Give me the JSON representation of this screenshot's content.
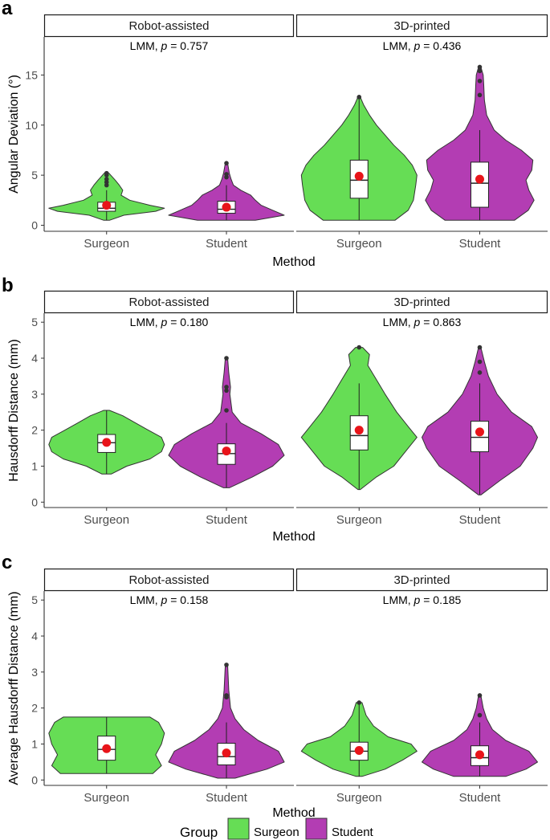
{
  "chart_data": [
    {
      "type": "violin",
      "panel_label": "a",
      "ylabel": "Angular Deviation (°)",
      "xlabel": "Method",
      "ylim": [
        -0.6,
        18.8
      ],
      "yticks": [
        0,
        5,
        10,
        15
      ],
      "categories": [
        "Surgeon",
        "Student"
      ],
      "facets": [
        {
          "strip": "Robot-assisted",
          "stat_prefix": "LMM, ",
          "stat_p": "p",
          "stat_value": " = 0.757",
          "violins": [
            {
              "group": "Surgeon",
              "ymin": 0.5,
              "ymax": 5.2,
              "q1": 1.4,
              "median": 1.7,
              "q3": 2.3,
              "mean": 2.0,
              "whisker_low": 0.5,
              "whisker_high": 3.5,
              "outliers": [
                4.0,
                4.3,
                4.6,
                5.0,
                5.2
              ],
              "profile": [
                [
                  0.5,
                  0.05
                ],
                [
                  1.0,
                  0.3
                ],
                [
                  1.4,
                  0.85
                ],
                [
                  1.7,
                  1.0
                ],
                [
                  2.0,
                  0.75
                ],
                [
                  2.5,
                  0.4
                ],
                [
                  3.0,
                  0.25
                ],
                [
                  3.5,
                  0.28
                ],
                [
                  4.0,
                  0.22
                ],
                [
                  4.5,
                  0.15
                ],
                [
                  5.2,
                  0.04
                ]
              ]
            },
            {
              "group": "Student",
              "ymin": 0.5,
              "ymax": 6.2,
              "q1": 1.2,
              "median": 1.6,
              "q3": 2.4,
              "mean": 1.8,
              "whisker_low": 0.5,
              "whisker_high": 4.0,
              "outliers": [
                4.8,
                5.1,
                6.2
              ],
              "profile": [
                [
                  0.5,
                  0.5
                ],
                [
                  1.0,
                  1.0
                ],
                [
                  1.5,
                  0.8
                ],
                [
                  2.0,
                  0.6
                ],
                [
                  2.5,
                  0.5
                ],
                [
                  3.0,
                  0.42
                ],
                [
                  3.5,
                  0.25
                ],
                [
                  4.0,
                  0.12
                ],
                [
                  4.6,
                  0.08
                ],
                [
                  5.2,
                  0.05
                ],
                [
                  6.2,
                  0.02
                ]
              ]
            }
          ]
        },
        {
          "strip": "3D-printed",
          "stat_prefix": "LMM, ",
          "stat_p": "p",
          "stat_value": " = 0.436",
          "violins": [
            {
              "group": "Surgeon",
              "ymin": 0.5,
              "ymax": 12.8,
              "q1": 2.7,
              "median": 4.5,
              "q3": 6.5,
              "mean": 4.9,
              "whisker_low": 0.5,
              "whisker_high": 12.8,
              "outliers": [
                12.8
              ],
              "profile": [
                [
                  0.5,
                  0.62
                ],
                [
                  1.5,
                  0.85
                ],
                [
                  2.5,
                  0.94
                ],
                [
                  4.0,
                  0.98
                ],
                [
                  5.0,
                  1.0
                ],
                [
                  6.0,
                  0.92
                ],
                [
                  7.0,
                  0.78
                ],
                [
                  8.0,
                  0.6
                ],
                [
                  9.0,
                  0.45
                ],
                [
                  10.0,
                  0.3
                ],
                [
                  11.0,
                  0.18
                ],
                [
                  12.0,
                  0.08
                ],
                [
                  12.8,
                  0.02
                ]
              ]
            },
            {
              "group": "Student",
              "ymin": 0.5,
              "ymax": 15.8,
              "q1": 1.8,
              "median": 4.2,
              "q3": 6.3,
              "mean": 4.6,
              "whisker_low": 0.5,
              "whisker_high": 9.5,
              "outliers": [
                13.0,
                14.4,
                15.4,
                15.8
              ],
              "profile": [
                [
                  0.5,
                  0.6
                ],
                [
                  1.5,
                  0.84
                ],
                [
                  2.5,
                  0.94
                ],
                [
                  3.5,
                  0.85
                ],
                [
                  4.5,
                  0.8
                ],
                [
                  5.5,
                  0.9
                ],
                [
                  6.5,
                  0.92
                ],
                [
                  7.5,
                  0.72
                ],
                [
                  8.5,
                  0.45
                ],
                [
                  9.5,
                  0.25
                ],
                [
                  11.0,
                  0.12
                ],
                [
                  12.5,
                  0.08
                ],
                [
                  14.0,
                  0.07
                ],
                [
                  15.0,
                  0.06
                ],
                [
                  15.8,
                  0.02
                ]
              ]
            }
          ]
        }
      ]
    },
    {
      "type": "violin",
      "panel_label": "b",
      "ylabel": "Hausdorff Distance (mm)",
      "xlabel": "Method",
      "ylim": [
        -0.15,
        5.25
      ],
      "yticks": [
        0,
        1,
        2,
        3,
        4,
        5
      ],
      "categories": [
        "Surgeon",
        "Student"
      ],
      "facets": [
        {
          "strip": "Robot-assisted",
          "stat_prefix": "LMM, ",
          "stat_p": "p",
          "stat_value": " = 0.180",
          "violins": [
            {
              "group": "Surgeon",
              "ymin": 0.78,
              "ymax": 2.55,
              "q1": 1.38,
              "median": 1.65,
              "q3": 1.88,
              "mean": 1.66,
              "whisker_low": 0.78,
              "whisker_high": 2.55,
              "outliers": [],
              "profile": [
                [
                  0.78,
                  0.08
                ],
                [
                  1.0,
                  0.35
                ],
                [
                  1.2,
                  0.75
                ],
                [
                  1.4,
                  0.95
                ],
                [
                  1.6,
                  1.0
                ],
                [
                  1.8,
                  0.95
                ],
                [
                  2.0,
                  0.72
                ],
                [
                  2.2,
                  0.5
                ],
                [
                  2.4,
                  0.28
                ],
                [
                  2.55,
                  0.05
                ]
              ]
            },
            {
              "group": "Student",
              "ymin": 0.4,
              "ymax": 4.0,
              "q1": 1.05,
              "median": 1.35,
              "q3": 1.62,
              "mean": 1.42,
              "whisker_low": 0.4,
              "whisker_high": 2.2,
              "outliers": [
                2.55,
                3.1,
                3.2,
                4.0
              ],
              "profile": [
                [
                  0.4,
                  0.05
                ],
                [
                  0.7,
                  0.45
                ],
                [
                  1.0,
                  0.8
                ],
                [
                  1.3,
                  1.0
                ],
                [
                  1.6,
                  0.9
                ],
                [
                  1.9,
                  0.6
                ],
                [
                  2.2,
                  0.25
                ],
                [
                  2.5,
                  0.1
                ],
                [
                  3.0,
                  0.06
                ],
                [
                  3.2,
                  0.07
                ],
                [
                  3.6,
                  0.04
                ],
                [
                  4.0,
                  0.02
                ]
              ]
            }
          ]
        },
        {
          "strip": "3D-printed",
          "stat_prefix": "LMM, ",
          "stat_p": "p",
          "stat_value": " = 0.863",
          "violins": [
            {
              "group": "Surgeon",
              "ymin": 0.35,
              "ymax": 4.3,
              "q1": 1.45,
              "median": 1.85,
              "q3": 2.4,
              "mean": 2.0,
              "whisker_low": 0.35,
              "whisker_high": 3.3,
              "outliers": [
                4.3
              ],
              "profile": [
                [
                  0.35,
                  0.02
                ],
                [
                  0.7,
                  0.3
                ],
                [
                  1.0,
                  0.6
                ],
                [
                  1.5,
                  0.85
                ],
                [
                  1.8,
                  1.0
                ],
                [
                  2.1,
                  0.85
                ],
                [
                  2.5,
                  0.65
                ],
                [
                  3.0,
                  0.45
                ],
                [
                  3.4,
                  0.3
                ],
                [
                  3.8,
                  0.15
                ],
                [
                  4.1,
                  0.18
                ],
                [
                  4.3,
                  0.06
                ]
              ]
            },
            {
              "group": "Student",
              "ymin": 0.2,
              "ymax": 4.3,
              "q1": 1.4,
              "median": 1.8,
              "q3": 2.25,
              "mean": 1.95,
              "whisker_low": 0.2,
              "whisker_high": 3.3,
              "outliers": [
                3.6,
                3.9,
                4.3
              ],
              "profile": [
                [
                  0.2,
                  0.02
                ],
                [
                  0.6,
                  0.35
                ],
                [
                  1.0,
                  0.7
                ],
                [
                  1.5,
                  0.92
                ],
                [
                  1.8,
                  1.0
                ],
                [
                  2.1,
                  0.9
                ],
                [
                  2.5,
                  0.55
                ],
                [
                  3.0,
                  0.3
                ],
                [
                  3.5,
                  0.15
                ],
                [
                  3.9,
                  0.08
                ],
                [
                  4.3,
                  0.02
                ]
              ]
            }
          ]
        }
      ]
    },
    {
      "type": "violin",
      "panel_label": "c",
      "ylabel": "Average Hausdorff Distance (mm)",
      "xlabel": "Method",
      "ylim": [
        -0.15,
        5.25
      ],
      "yticks": [
        0,
        1,
        2,
        3,
        4,
        5
      ],
      "categories": [
        "Surgeon",
        "Student"
      ],
      "facets": [
        {
          "strip": "Robot-assisted",
          "stat_prefix": "LMM, ",
          "stat_p": "p",
          "stat_value": " = 0.158",
          "violins": [
            {
              "group": "Surgeon",
              "ymin": 0.18,
              "ymax": 1.75,
              "q1": 0.55,
              "median": 0.85,
              "q3": 1.22,
              "mean": 0.87,
              "whisker_low": 0.18,
              "whisker_high": 1.75,
              "outliers": [],
              "profile": [
                [
                  0.18,
                  0.8
                ],
                [
                  0.4,
                  0.95
                ],
                [
                  0.7,
                  0.85
                ],
                [
                  1.0,
                  0.95
                ],
                [
                  1.3,
                  1.0
                ],
                [
                  1.6,
                  0.9
                ],
                [
                  1.75,
                  0.75
                ]
              ]
            },
            {
              "group": "Student",
              "ymin": 0.05,
              "ymax": 3.2,
              "q1": 0.42,
              "median": 0.65,
              "q3": 1.02,
              "mean": 0.75,
              "whisker_low": 0.05,
              "whisker_high": 1.6,
              "outliers": [
                2.3,
                2.35,
                3.2
              ],
              "profile": [
                [
                  0.05,
                  0.15
                ],
                [
                  0.3,
                  0.7
                ],
                [
                  0.5,
                  1.0
                ],
                [
                  0.8,
                  0.9
                ],
                [
                  1.1,
                  0.55
                ],
                [
                  1.4,
                  0.3
                ],
                [
                  1.7,
                  0.15
                ],
                [
                  2.0,
                  0.07
                ],
                [
                  2.5,
                  0.04
                ],
                [
                  3.2,
                  0.02
                ]
              ]
            }
          ]
        },
        {
          "strip": "3D-printed",
          "stat_prefix": "LMM, ",
          "stat_p": "p",
          "stat_value": " = 0.185",
          "violins": [
            {
              "group": "Surgeon",
              "ymin": 0.1,
              "ymax": 2.15,
              "q1": 0.55,
              "median": 0.8,
              "q3": 1.05,
              "mean": 0.82,
              "whisker_low": 0.1,
              "whisker_high": 2.15,
              "outliers": [
                2.15
              ],
              "profile": [
                [
                  0.1,
                  0.05
                ],
                [
                  0.3,
                  0.45
                ],
                [
                  0.55,
                  0.75
                ],
                [
                  0.8,
                  1.0
                ],
                [
                  1.0,
                  0.9
                ],
                [
                  1.2,
                  0.5
                ],
                [
                  1.5,
                  0.25
                ],
                [
                  1.8,
                  0.12
                ],
                [
                  2.15,
                  0.05
                ]
              ]
            },
            {
              "group": "Student",
              "ymin": 0.1,
              "ymax": 2.35,
              "q1": 0.4,
              "median": 0.62,
              "q3": 0.95,
              "mean": 0.7,
              "whisker_low": 0.1,
              "whisker_high": 1.6,
              "outliers": [
                1.8,
                2.35
              ],
              "profile": [
                [
                  0.1,
                  0.45
                ],
                [
                  0.3,
                  0.8
                ],
                [
                  0.5,
                  1.0
                ],
                [
                  0.8,
                  0.85
                ],
                [
                  1.1,
                  0.45
                ],
                [
                  1.4,
                  0.22
                ],
                [
                  1.7,
                  0.12
                ],
                [
                  2.0,
                  0.06
                ],
                [
                  2.35,
                  0.02
                ]
              ]
            }
          ]
        }
      ]
    }
  ],
  "legend": {
    "title": "Group",
    "items": [
      {
        "label": "Surgeon",
        "color": "#66DD55"
      },
      {
        "label": "Student",
        "color": "#B33DB3"
      }
    ]
  },
  "colors": {
    "Surgeon": "#66DD55",
    "Student": "#B33DB3",
    "mean_point": "#E8141A",
    "outline": "#333333",
    "text": "#4D4D4D"
  }
}
